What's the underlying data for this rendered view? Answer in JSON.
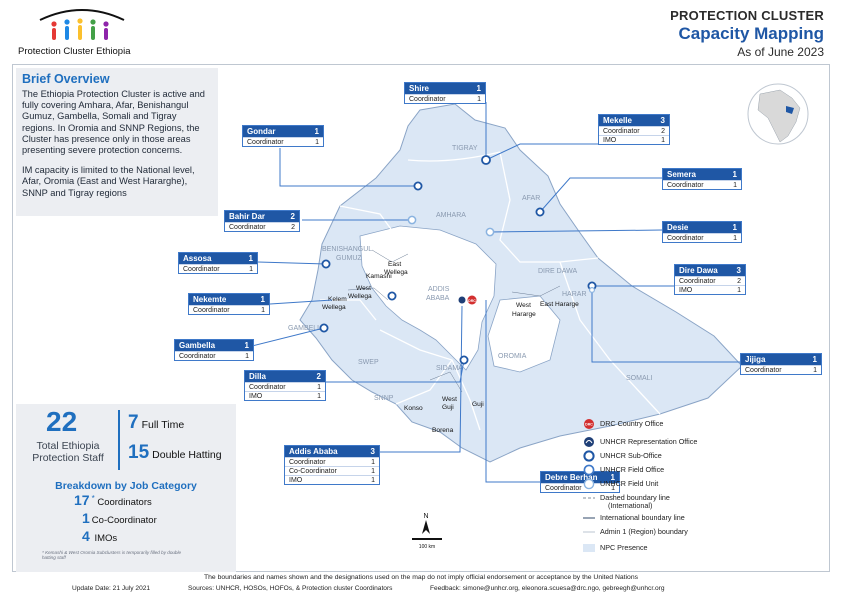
{
  "header": {
    "org_name": "Protection Cluster Ethiopia",
    "title_line1": "PROTECTION CLUSTER",
    "title_line2": "Capacity Mapping",
    "title_line3": "As of June 2023"
  },
  "overview": {
    "title": "Brief Overview",
    "paragraph1": "The Ethiopia Protection Cluster is active and fully covering Amhara, Afar, Benishangul Gumuz, Gambella, Somali and Tigray regions. In Oromia and SNNP Regions, the Cluster has presence only in those areas presenting severe protection concerns.",
    "paragraph2": "IM capacity is limited to the National level, Afar, Oromia (East and West Hararghe), SNNP and Tigray regions"
  },
  "staff": {
    "total": "22",
    "total_label": "Total Ethiopia Protection Staff",
    "full_time_count": "7",
    "full_time_label": "Full Time",
    "double_count": "15",
    "double_label": "Double Hatting",
    "breakdown_title": "Breakdown by Job Category",
    "coordinators_count": "17",
    "coordinators_mark": "*",
    "coordinators_label": "Coordinators",
    "cocoord_count": "1",
    "cocoord_label": "Co-Coordinator",
    "imo_count": "4",
    "imo_label": "IMOs",
    "note": "* Kemashi & West Oromia Subclusters is temporarily filled by double hatting staff"
  },
  "offices": [
    {
      "name": "Shire",
      "total": "1",
      "rows": [
        {
          "label": "Coordinator",
          "value": "1"
        }
      ]
    },
    {
      "name": "Gondar",
      "total": "1",
      "rows": [
        {
          "label": "Coordinator",
          "value": "1"
        }
      ]
    },
    {
      "name": "Mekelle",
      "total": "3",
      "rows": [
        {
          "label": "Coordinator",
          "value": "2"
        },
        {
          "label": "IMO",
          "value": "1"
        }
      ]
    },
    {
      "name": "Semera",
      "total": "1",
      "rows": [
        {
          "label": "Coordinator",
          "value": "1"
        }
      ]
    },
    {
      "name": "Bahir Dar",
      "total": "2",
      "rows": [
        {
          "label": "Coordinator",
          "value": "2"
        }
      ]
    },
    {
      "name": "Desie",
      "total": "1",
      "rows": [
        {
          "label": "Coordinator",
          "value": "1"
        }
      ]
    },
    {
      "name": "Assosa",
      "total": "1",
      "rows": [
        {
          "label": "Coordinator",
          "value": "1"
        }
      ]
    },
    {
      "name": "Dire Dawa",
      "total": "3",
      "rows": [
        {
          "label": "Coordinator",
          "value": "2"
        },
        {
          "label": "IMO",
          "value": "1"
        }
      ]
    },
    {
      "name": "Nekemte",
      "total": "1",
      "rows": [
        {
          "label": "Coordinator",
          "value": "1"
        }
      ]
    },
    {
      "name": "Gambella",
      "total": "1",
      "rows": [
        {
          "label": "Coordinator",
          "value": "1"
        }
      ]
    },
    {
      "name": "Jijiga",
      "total": "1",
      "rows": [
        {
          "label": "Coordinator",
          "value": "1"
        }
      ]
    },
    {
      "name": "Dilla",
      "total": "2",
      "rows": [
        {
          "label": "Coordinator",
          "value": "1"
        },
        {
          "label": "IMO",
          "value": "1"
        }
      ]
    },
    {
      "name": "Addis Ababa",
      "total": "3",
      "rows": [
        {
          "label": "Coordinator",
          "value": "1"
        },
        {
          "label": "Co-Coordinator",
          "value": "1"
        },
        {
          "label": "IMO",
          "value": "1"
        }
      ]
    },
    {
      "name": "Debre Berhan",
      "total": "1",
      "rows": [
        {
          "label": "Coordinator",
          "value": "1"
        }
      ]
    }
  ],
  "map_labels": {
    "tigray": "TIGRAY",
    "amhara": "AMHARA",
    "afar": "AFAR",
    "benishangul": "BENISHANGUL",
    "gumuz": "GUMUZ",
    "gambella": "GAMBELLA",
    "oromia": "OROMIA",
    "somali": "SOMALI",
    "swep": "SWEP",
    "sidama": "SIDAMA",
    "snnp": "SNNP",
    "dire_dawa": "DIRE DAWA",
    "harar": "HARAR",
    "addis": "ADDIS",
    "ababa": "ABABA",
    "kamashi": "Kamashi",
    "east_wellega_1": "East",
    "east_wellega_2": "Wellega",
    "west_wellega_1": "West",
    "west_wellega_2": "Wellega",
    "kelem_1": "Kelem",
    "kelem_2": "Wellega",
    "west_hararge_1": "West",
    "west_hararge_2": "Hararge",
    "east_hararge": "East Hararge",
    "konso": "Konso",
    "west_guji_1": "West",
    "west_guji_2": "Guji",
    "guji": "Guji",
    "borena": "Borena",
    "north": "N",
    "scale": "100 km"
  },
  "legend": [
    {
      "icon": "drc-country-office-icon",
      "label": "DRC Country Office"
    },
    {
      "icon": "unhcr-representation-office-icon",
      "label": "UNHCR Representation Office"
    },
    {
      "icon": "unhcr-sub-office-icon",
      "label": "UNHCR Sub-Office"
    },
    {
      "icon": "unhcr-field-office-icon",
      "label": "UNHCR Field Office"
    },
    {
      "icon": "unhcr-field-unit-icon",
      "label": "UNHCR Field Unit"
    },
    {
      "icon": "dashed-boundary-icon",
      "label": "Dashed boundary line",
      "label2": "(International)"
    },
    {
      "icon": "international-boundary-icon",
      "label": "International boundary line"
    },
    {
      "icon": "admin1-boundary-icon",
      "label": "Admin 1 (Region) boundary"
    },
    {
      "icon": "npc-presence-icon",
      "label": "NPC Presence"
    }
  ],
  "drc_badge": "DRC",
  "footer": {
    "disclaimer": "The boundaries and names shown and the designations used on the map do not imply official endorsement or acceptance by the United Nations",
    "update": "Update Date: 21 July 2021",
    "sources": "Sources: UNHCR, HOSOs, HOFOs, & Protection cluster Coordinators",
    "feedback": "Feedback: simone@unhcr.org, eleonora.scuesa@drc.ngo, gebreegh@unhcr.org"
  },
  "colors": {
    "accent": "#1f57a5",
    "accent_light": "#1f6fbf",
    "npc_fill": "#dbe7f5",
    "drc_red": "#d32f2f"
  }
}
